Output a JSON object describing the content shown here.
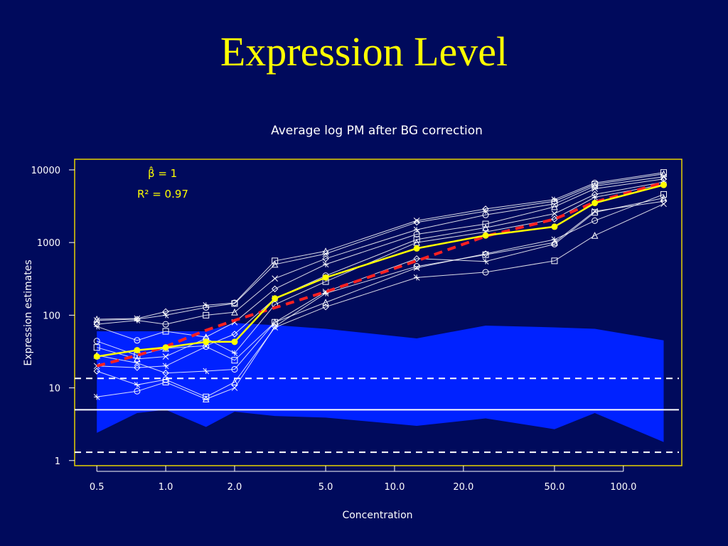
{
  "slide": {
    "title": "Expression Level"
  },
  "chart_data": {
    "type": "line",
    "title": "Average log PM after BG correction",
    "xlabel": "Concentration",
    "ylabel": "Expression estimates",
    "xscale": "log",
    "yscale": "log",
    "xlim": [
      0.4,
      180
    ],
    "ylim": [
      0.85,
      14000
    ],
    "x_tick_labels": [
      "0.5",
      "1.0",
      "2.0",
      "5.0",
      "10.0",
      "20.0",
      "50.0",
      "100.0"
    ],
    "x_tick_values": [
      0.5,
      1,
      2,
      5,
      10,
      20,
      50,
      100
    ],
    "y_tick_labels": [
      "1",
      "10",
      "100",
      "1000",
      "10000"
    ],
    "y_tick_values": [
      1,
      10,
      100,
      1000,
      10000
    ],
    "grid": false,
    "annotations": {
      "beta_line": "β̂ = 1",
      "r2_line": "R² = 0.97"
    },
    "x": [
      0.5,
      0.75,
      1,
      1.5,
      2,
      3,
      5,
      7.5,
      12.5,
      25,
      50,
      75,
      150
    ],
    "series": [
      {
        "values": [
          27,
          33,
          36,
          43,
          43,
          170,
          330,
          null,
          830,
          1250,
          1650,
          3500,
          6200
        ],
        "color": "#ffff00",
        "style": "solid-filled-circles"
      },
      {
        "values": [
          20,
          28,
          37,
          62,
          85,
          null,
          210,
          null,
          560,
          1220,
          2100,
          3600,
          6700
        ],
        "color": "#ff2020",
        "style": "dashed"
      },
      {
        "values": [
          88,
          90,
          112,
          137,
          148,
          560,
          760,
          null,
          2000,
          2900,
          3900,
          6600,
          9200
        ],
        "color": "#ffffff",
        "style": "thin"
      },
      {
        "values": [
          85,
          88,
          100,
          128,
          145,
          500,
          700,
          null,
          1900,
          2700,
          3700,
          6300,
          8800
        ],
        "color": "#ffffff",
        "style": "thin"
      },
      {
        "values": [
          75,
          85,
          75,
          100,
          110,
          320,
          600,
          null,
          1500,
          2400,
          3400,
          6000,
          8000
        ],
        "color": "#ffffff",
        "style": "thin"
      },
      {
        "values": [
          70,
          45,
          60,
          50,
          80,
          230,
          500,
          null,
          1300,
          1800,
          3100,
          5500,
          7500
        ],
        "color": "#ffffff",
        "style": "thin"
      },
      {
        "values": [
          44,
          28,
          35,
          38,
          55,
          170,
          350,
          null,
          1100,
          1600,
          2500,
          4600,
          6800
        ],
        "color": "#ffffff",
        "style": "thin"
      },
      {
        "values": [
          36,
          25,
          27,
          48,
          30,
          140,
          290,
          null,
          1000,
          1400,
          2100,
          4200,
          6300
        ],
        "color": "#ffffff",
        "style": "thin"
      },
      {
        "values": [
          28,
          22,
          16,
          17,
          18,
          80,
          150,
          null,
          450,
          700,
          1100,
          2000,
          4600
        ],
        "color": "#ffffff",
        "style": "thin"
      },
      {
        "values": [
          20,
          19,
          20,
          37,
          24,
          80,
          210,
          null,
          600,
          550,
          950,
          2600,
          4100
        ],
        "color": "#ffffff",
        "style": "thin"
      },
      {
        "values": [
          17,
          11,
          13,
          7.5,
          12,
          68,
          130,
          null,
          330,
          390,
          560,
          1250,
          3400
        ],
        "color": "#ffffff",
        "style": "thin"
      },
      {
        "values": [
          7.5,
          9,
          12,
          7,
          10,
          70,
          200,
          null,
          470,
          680,
          1000,
          2700,
          3700
        ],
        "color": "#ffffff",
        "style": "thin"
      }
    ],
    "band": {
      "color": "#0022ff",
      "x": [
        0.5,
        0.75,
        1,
        1.5,
        2,
        3,
        5,
        12.5,
        25,
        50,
        75,
        150
      ],
      "upper": [
        60,
        60,
        60,
        60,
        78,
        73,
        65,
        48,
        72,
        68,
        65,
        45
      ],
      "lower": [
        2.4,
        4.5,
        5,
        2.9,
        4.7,
        4.1,
        3.9,
        3.0,
        3.8,
        2.7,
        4.5,
        1.8
      ]
    },
    "reference_lines": [
      {
        "y": 5,
        "style": "solid",
        "color": "#ffffff"
      },
      {
        "y": 13.5,
        "style": "dashed",
        "color": "#ffffff"
      },
      {
        "y": 1.3,
        "style": "dashed",
        "color": "#ffffff"
      }
    ],
    "frame_color": "#e8d200"
  }
}
